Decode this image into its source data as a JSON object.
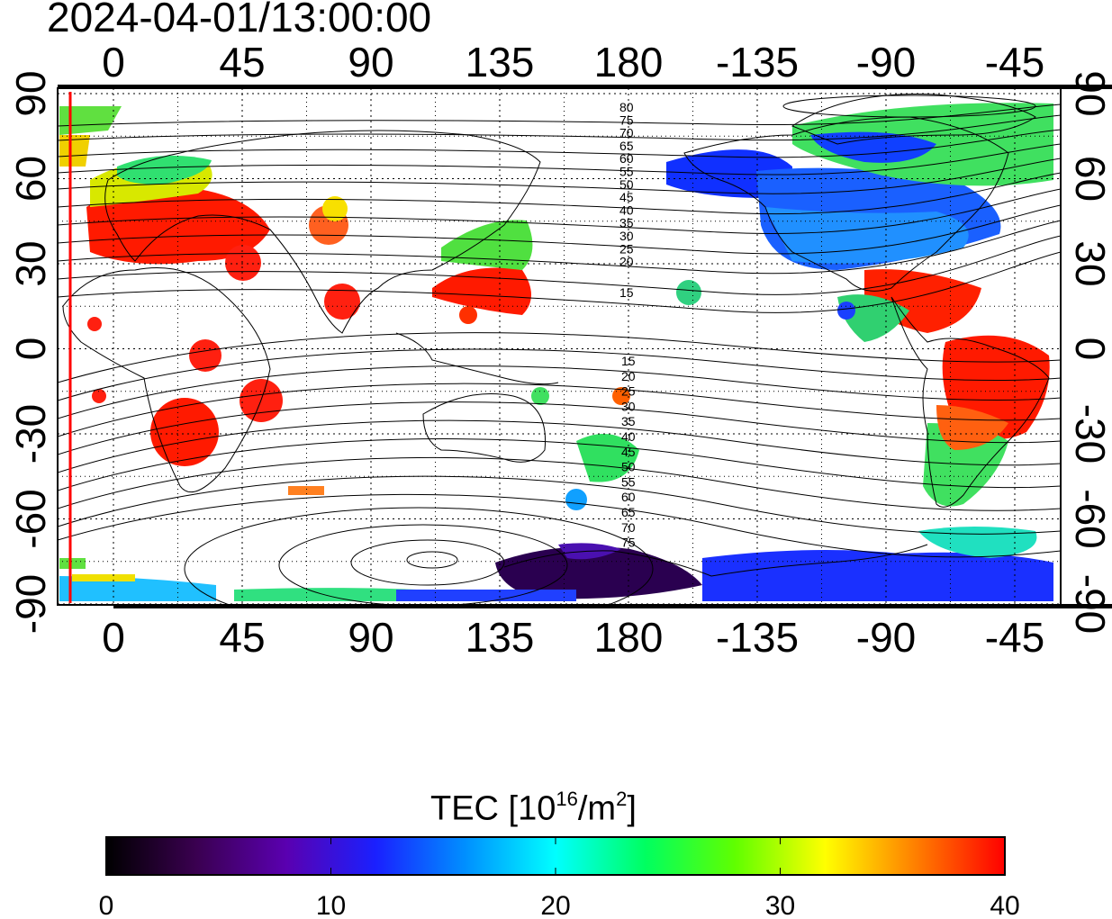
{
  "title": "2024-04-01/13:00:00",
  "map": {
    "lon_ticks_top": [
      "0",
      "45",
      "90",
      "135",
      "180",
      "-135",
      "-90",
      "-45"
    ],
    "lon_ticks_bottom": [
      "0",
      "45",
      "90",
      "135",
      "180",
      "-135",
      "-90",
      "-45"
    ],
    "lat_ticks_left": [
      "90",
      "60",
      "30",
      "0",
      "-30",
      "-60",
      "-90"
    ],
    "lat_ticks_right": [
      "90",
      "60",
      "30",
      "0",
      "-30",
      "-60",
      "-90"
    ],
    "contour_labels_north": [
      "80",
      "75",
      "70",
      "65",
      "60",
      "55",
      "50",
      "45",
      "40",
      "35",
      "30",
      "25",
      "20",
      "15"
    ],
    "contour_labels_south": [
      "15",
      "20",
      "25",
      "30",
      "35",
      "40",
      "45",
      "50",
      "55",
      "60",
      "65",
      "70",
      "75"
    ],
    "terminator_color": "#ff0000"
  },
  "colorbar": {
    "label_prefix": "TEC  [10",
    "label_exp": "16",
    "label_mid": "/m",
    "label_exp2": "2",
    "label_suffix": "]",
    "ticks": [
      "0",
      "10",
      "20",
      "30",
      "40"
    ],
    "range": [
      0,
      40
    ],
    "stops": [
      "#000000",
      "#3a0050",
      "#5a00b0",
      "#1a20ff",
      "#0090ff",
      "#00ffff",
      "#00ff60",
      "#60ff00",
      "#ffff00",
      "#ff8000",
      "#ff0000"
    ]
  }
}
